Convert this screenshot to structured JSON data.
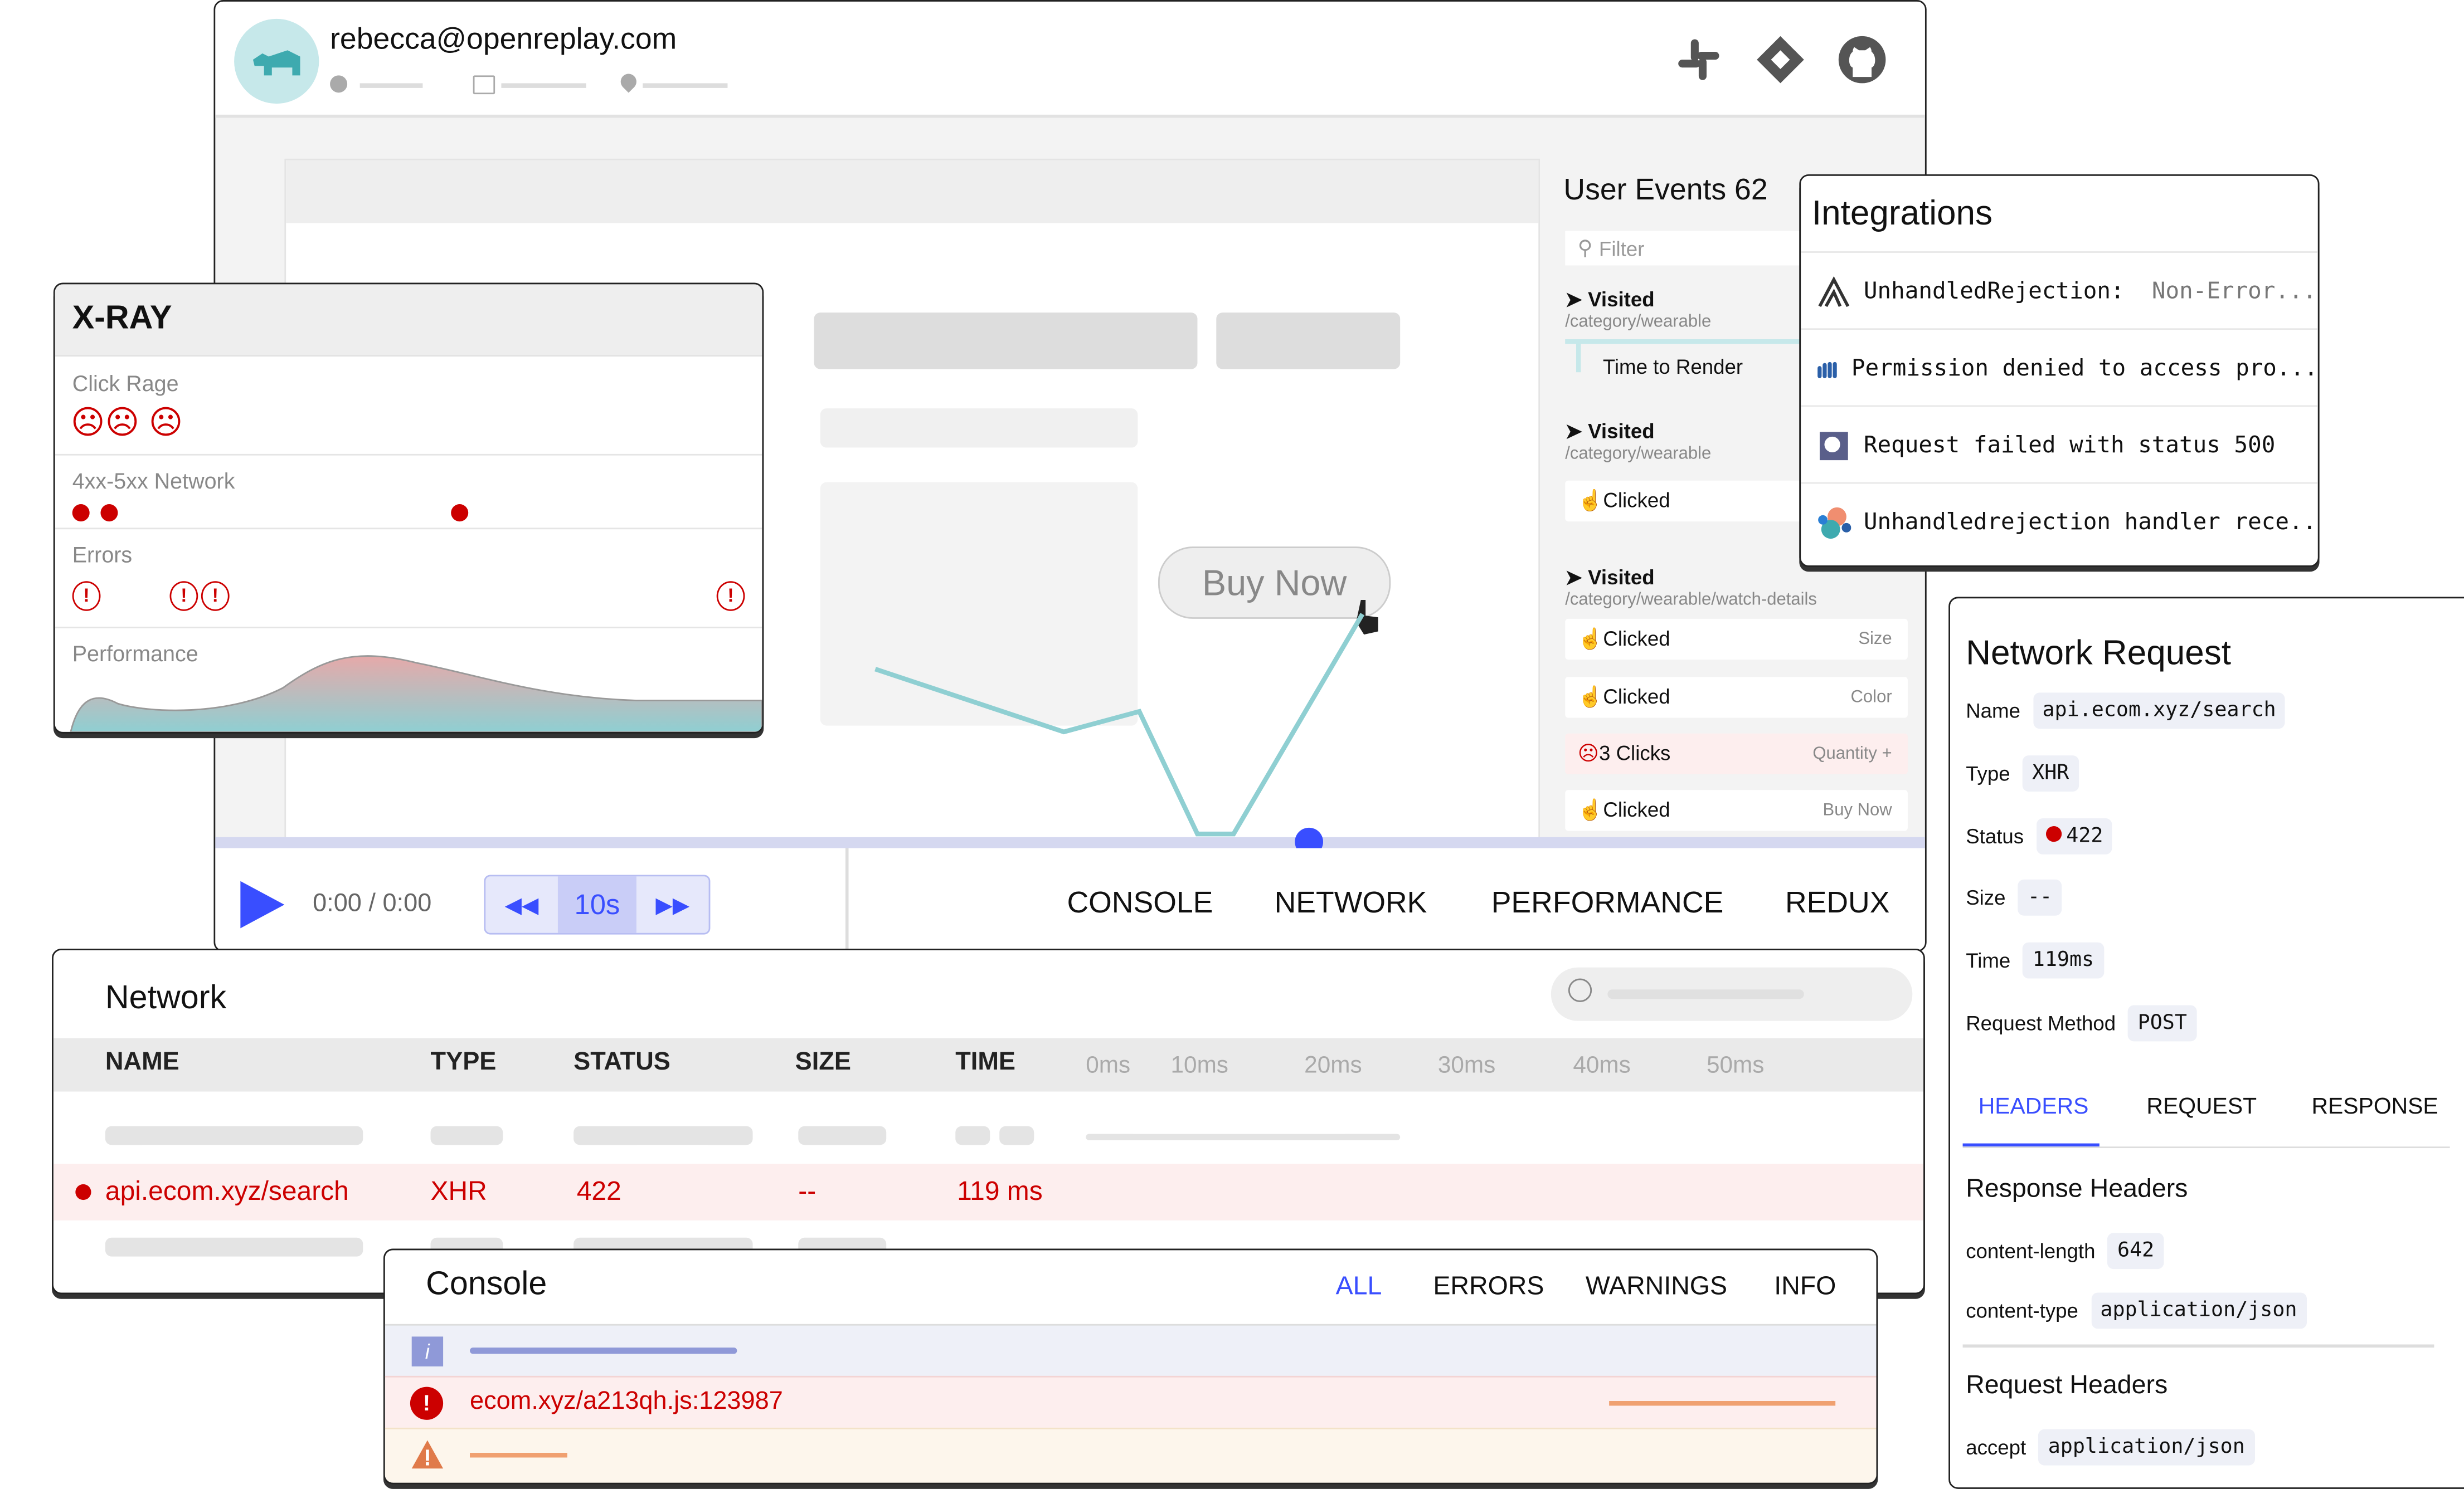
{
  "header": {
    "user_email": "rebecca@openreplay.com",
    "icons": [
      "clock-icon",
      "browser-icon",
      "location-icon",
      "slack-icon",
      "jira-icon",
      "github-icon"
    ]
  },
  "player": {
    "buy_now_label": "Buy Now",
    "time": "0:00 / 0:00",
    "skip_label": "10s",
    "tabs": [
      "CONSOLE",
      "NETWORK",
      "PERFORMANCE",
      "REDUX"
    ]
  },
  "user_events": {
    "title": "User Events 62",
    "filter_placeholder": "Filter",
    "visited1": {
      "label": "Visited",
      "path": "/category/wearable"
    },
    "time_to_render": "Time to Render",
    "visited2": {
      "label": "Visited",
      "path": "/category/wearable"
    },
    "clicked1": "Clicked",
    "visited3": {
      "label": "Visited",
      "path": "/category/wearable/watch-details"
    },
    "events": [
      {
        "label": "Clicked",
        "target": "Size"
      },
      {
        "label": "Clicked",
        "target": "Color"
      },
      {
        "label": "3 Clicks",
        "target": "Quantity +"
      },
      {
        "label": "Clicked",
        "target": "Buy Now"
      }
    ]
  },
  "xray": {
    "title": "X-RAY",
    "rows": [
      "Click Rage",
      "4xx-5xx Network",
      "Errors",
      "Performance"
    ]
  },
  "integrations": {
    "title": "Integrations",
    "items": [
      {
        "icon": "sentry-icon",
        "text": "UnhandledRejection:",
        "detail": "Non-Error..."
      },
      {
        "icon": "bugsnag-icon",
        "text": "Permission denied to access pro..."
      },
      {
        "icon": "datadog-icon",
        "text": "Request failed with status 500"
      },
      {
        "icon": "elastic-icon",
        "text": "Unhandledrejection handler rece.."
      }
    ]
  },
  "network_request": {
    "title": "Network Request",
    "fields": [
      {
        "label": "Name",
        "value": "api.ecom.xyz/search"
      },
      {
        "label": "Type",
        "value": "XHR"
      },
      {
        "label": "Status",
        "value": "422"
      },
      {
        "label": "Size",
        "value": "--"
      },
      {
        "label": "Time",
        "value": "119ms"
      },
      {
        "label": "Request Method",
        "value": "POST"
      }
    ],
    "tabs": [
      "HEADERS",
      "REQUEST",
      "RESPONSE"
    ],
    "active_tab": "HEADERS",
    "response_headers_title": "Response Headers",
    "response_headers": [
      {
        "label": "content-length",
        "value": "642"
      },
      {
        "label": "content-type",
        "value": "application/json"
      }
    ],
    "request_headers_title": "Request Headers",
    "request_headers": [
      {
        "label": "accept",
        "value": "application/json"
      }
    ]
  },
  "network": {
    "title": "Network",
    "columns": [
      "NAME",
      "TYPE",
      "STATUS",
      "SIZE",
      "TIME"
    ],
    "timeline_ticks": [
      "0ms",
      "10ms",
      "20ms",
      "30ms",
      "40ms",
      "50ms"
    ],
    "row": {
      "name": "api.ecom.xyz/search",
      "type": "XHR",
      "status": "422",
      "size": "--",
      "time": "119 ms"
    }
  },
  "console": {
    "title": "Console",
    "tabs": [
      "ALL",
      "ERRORS",
      "WARNINGS",
      "INFO"
    ],
    "active_tab": "ALL",
    "error_text": "ecom.xyz/a213qh.js:123987"
  },
  "colors": {
    "accent": "#394eff",
    "error": "#cc0000",
    "teal": "#3eaaaf",
    "error_bg": "#fdeeee",
    "warning": "#f0a070"
  }
}
